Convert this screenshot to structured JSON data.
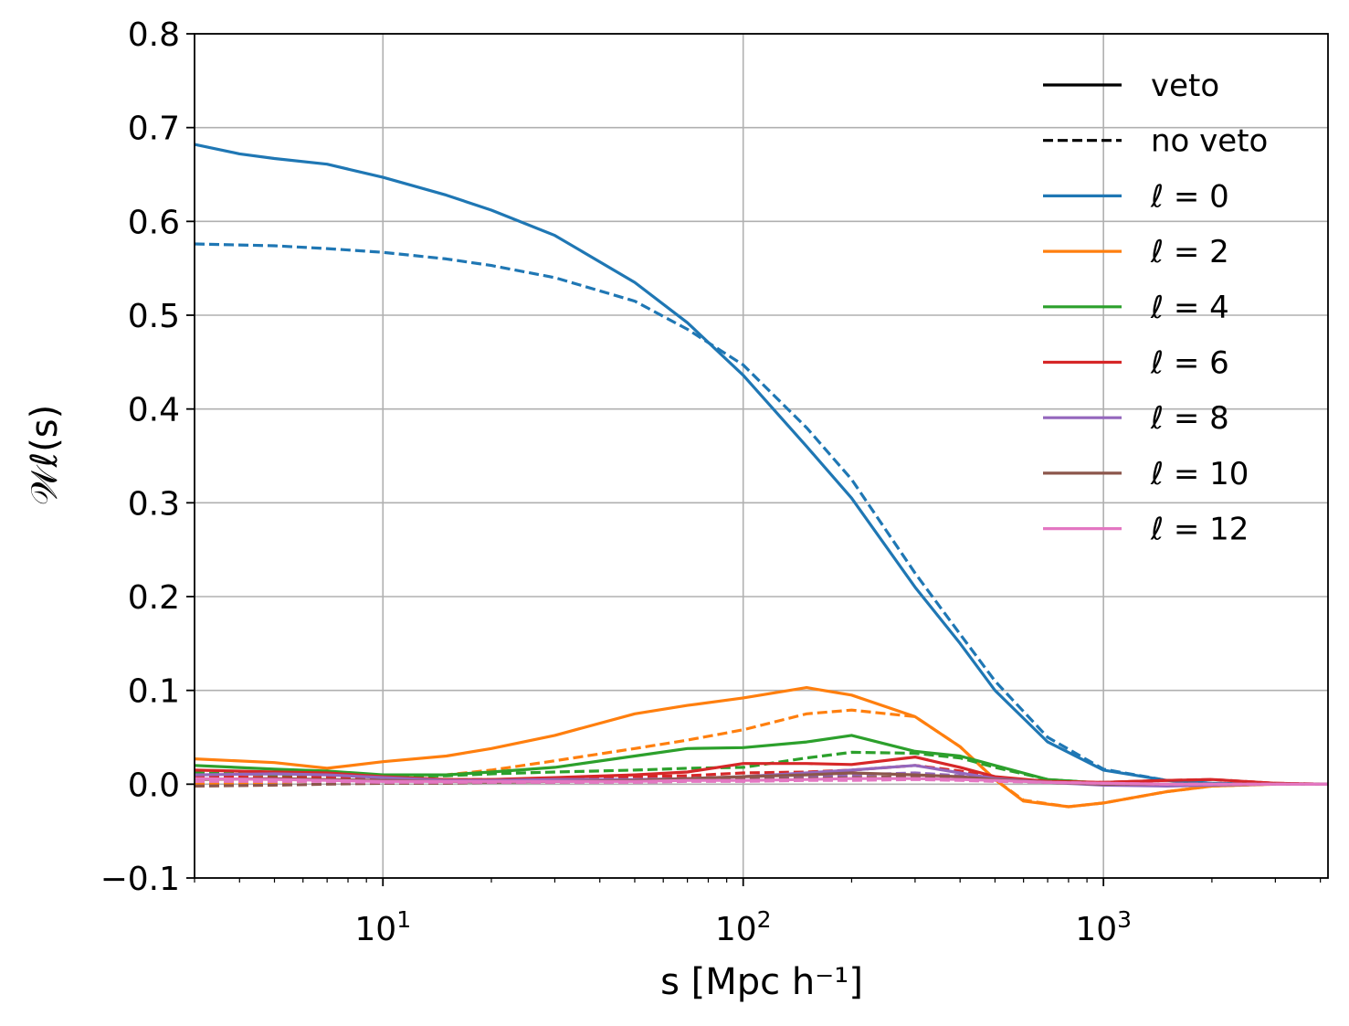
{
  "chart_data": {
    "type": "line",
    "x_scale": "log",
    "xlim": [
      3,
      4200
    ],
    "ylim": [
      -0.1,
      0.8
    ],
    "ylabel": "𝒲ℓ(s)",
    "xlabel": "s [Mpc h⁻¹]",
    "x_ticks": [
      {
        "value": 10,
        "base": "10",
        "exp": "1"
      },
      {
        "value": 100,
        "base": "10",
        "exp": "2"
      },
      {
        "value": 1000,
        "base": "10",
        "exp": "3"
      }
    ],
    "y_ticks": [
      "−0.1",
      "0.0",
      "0.1",
      "0.2",
      "0.3",
      "0.4",
      "0.5",
      "0.6",
      "0.7",
      "0.8"
    ],
    "y_tick_values": [
      -0.1,
      0.0,
      0.1,
      0.2,
      0.3,
      0.4,
      0.5,
      0.6,
      0.7,
      0.8
    ],
    "grid": true,
    "legend": {
      "position": "top-right",
      "style_entries": [
        {
          "label": "veto",
          "dash": "solid",
          "color": "#000000"
        },
        {
          "label": "no veto",
          "dash": "dashed",
          "color": "#000000"
        }
      ],
      "series_entries": [
        {
          "label": "ℓ = 0",
          "color": "#1f77b4"
        },
        {
          "label": "ℓ = 2",
          "color": "#ff7f0e"
        },
        {
          "label": "ℓ = 4",
          "color": "#2ca02c"
        },
        {
          "label": "ℓ = 6",
          "color": "#d62728"
        },
        {
          "label": "ℓ = 8",
          "color": "#9467bd"
        },
        {
          "label": "ℓ = 10",
          "color": "#8c564b"
        },
        {
          "label": "ℓ = 12",
          "color": "#e377c2"
        }
      ]
    },
    "series": [
      {
        "name": "ℓ=0 veto",
        "color": "#1f77b4",
        "dash": "solid",
        "x": [
          3,
          4,
          5,
          7,
          10,
          15,
          20,
          30,
          50,
          70,
          100,
          150,
          200,
          300,
          400,
          500,
          700,
          1000,
          1500,
          2000,
          3000,
          4200
        ],
        "y": [
          0.682,
          0.672,
          0.667,
          0.661,
          0.647,
          0.628,
          0.612,
          0.585,
          0.535,
          0.492,
          0.436,
          0.36,
          0.305,
          0.21,
          0.15,
          0.1,
          0.045,
          0.015,
          0.004,
          0.001,
          0.0,
          0.0
        ]
      },
      {
        "name": "ℓ=0 no veto",
        "color": "#1f77b4",
        "dash": "dashed",
        "x": [
          3,
          5,
          7,
          10,
          15,
          20,
          30,
          50,
          70,
          100,
          150,
          200,
          300,
          400,
          500,
          700,
          1000,
          1500,
          2000,
          3000,
          4200
        ],
        "y": [
          0.576,
          0.574,
          0.571,
          0.567,
          0.56,
          0.553,
          0.54,
          0.515,
          0.485,
          0.447,
          0.38,
          0.325,
          0.225,
          0.16,
          0.11,
          0.05,
          0.016,
          0.004,
          0.001,
          0.0,
          0.0
        ]
      },
      {
        "name": "ℓ=2 veto",
        "color": "#ff7f0e",
        "dash": "solid",
        "x": [
          3,
          5,
          7,
          10,
          15,
          20,
          30,
          50,
          70,
          100,
          150,
          200,
          300,
          400,
          500,
          600,
          800,
          1000,
          1500,
          2000,
          3000,
          4200
        ],
        "y": [
          0.027,
          0.023,
          0.017,
          0.024,
          0.03,
          0.038,
          0.052,
          0.075,
          0.084,
          0.092,
          0.103,
          0.095,
          0.072,
          0.04,
          0.005,
          -0.018,
          -0.024,
          -0.02,
          -0.008,
          -0.002,
          0.0,
          0.0
        ]
      },
      {
        "name": "ℓ=2 no veto",
        "color": "#ff7f0e",
        "dash": "dashed",
        "x": [
          3,
          5,
          7,
          10,
          15,
          20,
          30,
          50,
          70,
          100,
          150,
          200,
          300,
          400,
          500,
          600,
          800,
          1000,
          1500,
          2000,
          3000,
          4200
        ],
        "y": [
          0.0,
          0.002,
          0.004,
          0.006,
          0.01,
          0.015,
          0.025,
          0.038,
          0.047,
          0.058,
          0.075,
          0.079,
          0.072,
          0.04,
          0.005,
          -0.017,
          -0.024,
          -0.02,
          -0.008,
          -0.002,
          0.0,
          0.0
        ]
      },
      {
        "name": "ℓ=4 veto",
        "color": "#2ca02c",
        "dash": "solid",
        "x": [
          3,
          5,
          7,
          10,
          15,
          20,
          30,
          50,
          70,
          100,
          150,
          200,
          300,
          400,
          500,
          700,
          1000,
          1500,
          2000,
          3000,
          4200
        ],
        "y": [
          0.02,
          0.016,
          0.014,
          0.01,
          0.01,
          0.013,
          0.018,
          0.03,
          0.038,
          0.039,
          0.045,
          0.052,
          0.035,
          0.03,
          0.02,
          0.005,
          0.001,
          0.0,
          0.0,
          0.0,
          0.0
        ]
      },
      {
        "name": "ℓ=4 no veto",
        "color": "#2ca02c",
        "dash": "dashed",
        "x": [
          3,
          5,
          7,
          10,
          15,
          20,
          30,
          50,
          70,
          100,
          150,
          200,
          300,
          400,
          500,
          700,
          1000,
          1500,
          2000,
          3000,
          4200
        ],
        "y": [
          0.012,
          0.01,
          0.009,
          0.008,
          0.009,
          0.011,
          0.013,
          0.015,
          0.017,
          0.018,
          0.028,
          0.034,
          0.033,
          0.028,
          0.018,
          0.005,
          0.001,
          0.0,
          0.0,
          0.0,
          0.0
        ]
      },
      {
        "name": "ℓ=6 veto",
        "color": "#d62728",
        "dash": "solid",
        "x": [
          3,
          5,
          7,
          10,
          15,
          20,
          30,
          50,
          70,
          100,
          150,
          200,
          300,
          400,
          500,
          700,
          1000,
          1500,
          2000,
          3000,
          4200
        ],
        "y": [
          0.015,
          0.013,
          0.012,
          0.008,
          0.005,
          0.005,
          0.007,
          0.01,
          0.013,
          0.022,
          0.022,
          0.021,
          0.029,
          0.018,
          0.008,
          0.003,
          0.002,
          0.004,
          0.005,
          0.001,
          0.0
        ]
      },
      {
        "name": "ℓ=6 no veto",
        "color": "#d62728",
        "dash": "dashed",
        "x": [
          3,
          5,
          7,
          10,
          15,
          20,
          30,
          50,
          70,
          100,
          150,
          200,
          300,
          400,
          500,
          700,
          1000,
          1500,
          2000,
          3000,
          4200
        ],
        "y": [
          0.008,
          0.007,
          0.007,
          0.006,
          0.005,
          0.005,
          0.006,
          0.008,
          0.009,
          0.012,
          0.013,
          0.015,
          0.02,
          0.014,
          0.007,
          0.003,
          0.002,
          0.004,
          0.005,
          0.001,
          0.0
        ]
      },
      {
        "name": "ℓ=8 veto",
        "color": "#9467bd",
        "dash": "solid",
        "x": [
          3,
          5,
          7,
          10,
          15,
          20,
          30,
          50,
          70,
          100,
          150,
          200,
          300,
          400,
          500,
          700,
          1000,
          1500,
          2000,
          3000,
          4200
        ],
        "y": [
          0.01,
          0.011,
          0.01,
          0.007,
          0.004,
          0.004,
          0.005,
          0.005,
          0.006,
          0.008,
          0.012,
          0.015,
          0.02,
          0.012,
          0.006,
          0.002,
          -0.001,
          -0.002,
          -0.001,
          0.0,
          0.0
        ]
      },
      {
        "name": "ℓ=8 no veto",
        "color": "#9467bd",
        "dash": "dashed",
        "x": [
          3,
          5,
          7,
          10,
          15,
          20,
          30,
          50,
          70,
          100,
          150,
          200,
          300,
          400,
          500,
          700,
          1000,
          1500,
          2000,
          3000,
          4200
        ],
        "y": [
          0.004,
          0.005,
          0.005,
          0.004,
          0.003,
          0.003,
          0.003,
          0.004,
          0.005,
          0.006,
          0.008,
          0.01,
          0.012,
          0.009,
          0.005,
          0.002,
          0.0,
          -0.001,
          0.0,
          0.0,
          0.0
        ]
      },
      {
        "name": "ℓ=10 veto",
        "color": "#8c564b",
        "dash": "solid",
        "x": [
          3,
          5,
          7,
          10,
          15,
          20,
          30,
          50,
          70,
          100,
          150,
          200,
          300,
          400,
          500,
          700,
          1000,
          1500,
          2000,
          3000,
          4200
        ],
        "y": [
          0.005,
          0.006,
          0.005,
          0.004,
          0.003,
          0.002,
          0.003,
          0.004,
          0.006,
          0.008,
          0.01,
          0.012,
          0.01,
          0.008,
          0.005,
          0.002,
          0.0,
          0.0,
          0.0,
          0.0,
          0.0
        ]
      },
      {
        "name": "ℓ=10 no veto",
        "color": "#8c564b",
        "dash": "dashed",
        "x": [
          3,
          5,
          7,
          10,
          15,
          20,
          30,
          50,
          70,
          100,
          150,
          200,
          300,
          400,
          500,
          700,
          1000,
          1500,
          2000,
          3000,
          4200
        ],
        "y": [
          -0.002,
          -0.001,
          0.0,
          0.001,
          0.001,
          0.002,
          0.002,
          0.003,
          0.004,
          0.005,
          0.006,
          0.007,
          0.008,
          0.006,
          0.004,
          0.002,
          0.0,
          0.0,
          0.0,
          0.0,
          0.0
        ]
      },
      {
        "name": "ℓ=12 veto",
        "color": "#e377c2",
        "dash": "solid",
        "x": [
          3,
          5,
          7,
          10,
          15,
          20,
          30,
          50,
          70,
          100,
          150,
          200,
          300,
          400,
          500,
          700,
          1000,
          1500,
          2000,
          3000,
          4200
        ],
        "y": [
          0.006,
          0.005,
          0.004,
          0.003,
          0.003,
          0.003,
          0.003,
          0.003,
          0.004,
          0.004,
          0.005,
          0.006,
          0.006,
          0.005,
          0.004,
          0.002,
          0.001,
          0.0,
          0.0,
          0.0,
          0.0
        ]
      },
      {
        "name": "ℓ=12 no veto",
        "color": "#e377c2",
        "dash": "dashed",
        "x": [
          3,
          5,
          7,
          10,
          15,
          20,
          30,
          50,
          70,
          100,
          150,
          200,
          300,
          400,
          500,
          700,
          1000,
          1500,
          2000,
          3000,
          4200
        ],
        "y": [
          0.003,
          0.003,
          0.003,
          0.002,
          0.002,
          0.002,
          0.002,
          0.002,
          0.003,
          0.003,
          0.004,
          0.004,
          0.005,
          0.004,
          0.003,
          0.002,
          0.001,
          0.0,
          0.0,
          0.0,
          0.0
        ]
      }
    ]
  }
}
